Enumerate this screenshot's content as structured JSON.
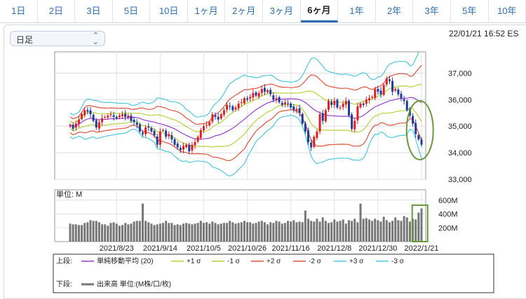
{
  "tabs": [
    {
      "label": "1日",
      "active": false
    },
    {
      "label": "2日",
      "active": false
    },
    {
      "label": "3日",
      "active": false
    },
    {
      "label": "5日",
      "active": false
    },
    {
      "label": "10日",
      "active": false
    },
    {
      "label": "1ヶ月",
      "active": false
    },
    {
      "label": "2ヶ月",
      "active": false
    },
    {
      "label": "3ヶ月",
      "active": false
    },
    {
      "label": "6ヶ月",
      "active": true
    },
    {
      "label": "1年",
      "active": false
    },
    {
      "label": "2年",
      "active": false
    },
    {
      "label": "3年",
      "active": false
    },
    {
      "label": "5年",
      "active": false
    },
    {
      "label": "10年",
      "active": false
    }
  ],
  "period_select": {
    "value": "日足"
  },
  "timestamp": "22/01/21 16:52 ES",
  "colors": {
    "up": "#e02020",
    "down": "#1f3c9c",
    "sma": "#9b3fd0",
    "sigma1": "#b8d23c",
    "sigma2": "#e0523a",
    "sigma3": "#4cc8e0",
    "volume": "#777777",
    "annotation": "#6a9a3c"
  },
  "chart_data": {
    "type": "candlestick",
    "price_axis": {
      "ticks": [
        "37,000",
        "36,000",
        "35,000",
        "34,000",
        "33,000"
      ],
      "ylim": [
        33000,
        37800
      ]
    },
    "volume_axis": {
      "unit_label": "単位: M",
      "ticks": [
        "600M",
        "400M",
        "200M"
      ],
      "ylim": [
        0,
        750
      ]
    },
    "x_ticks": [
      "2021/8/23",
      "2021/9/14",
      "2021/10/5",
      "2021/10/26",
      "2021/11/16",
      "2021/12/8",
      "2021/12/30",
      "2022/1/21"
    ],
    "close": [
      35050,
      34900,
      35100,
      35250,
      35450,
      35600,
      35550,
      35450,
      35200,
      34950,
      35150,
      35300,
      35350,
      35400,
      35450,
      35350,
      35300,
      35400,
      35450,
      35350,
      35400,
      35200,
      35150,
      35050,
      34800,
      34700,
      34950,
      34950,
      34800,
      34650,
      34300,
      34800,
      34850,
      34600,
      34700,
      34500,
      34300,
      34200,
      34100,
      34250,
      34300,
      34050,
      34300,
      34400,
      34600,
      34850,
      35000,
      35050,
      35150,
      35450,
      35350,
      35250,
      35450,
      35600,
      35800,
      35750,
      35600,
      35700,
      35850,
      35900,
      36050,
      36000,
      36100,
      36250,
      36150,
      36250,
      36400,
      36300,
      36350,
      36200,
      36000,
      36050,
      35900,
      35800,
      35900,
      35850,
      35700,
      35600,
      35650,
      35500,
      35100,
      34800,
      34400,
      34200,
      34600,
      34800,
      35450,
      35200,
      35600,
      35950,
      35800,
      35950,
      35700,
      35700,
      35850,
      35950,
      35400,
      34900,
      35200,
      35750,
      35850,
      35800,
      36000,
      36050,
      36100,
      36400,
      36300,
      36200,
      36550,
      36800,
      36700,
      36300,
      36400,
      36200,
      36050,
      35950,
      35600,
      35400,
      35100,
      34700,
      34500,
      34300
    ],
    "volume": [
      260,
      250,
      250,
      240,
      240,
      270,
      280,
      310,
      300,
      300,
      280,
      250,
      250,
      230,
      270,
      280,
      260,
      230,
      240,
      270,
      250,
      260,
      290,
      300,
      300,
      550,
      300,
      280,
      260,
      240,
      250,
      260,
      270,
      300,
      270,
      270,
      240,
      250,
      240,
      260,
      270,
      260,
      250,
      260,
      270,
      300,
      270,
      280,
      260,
      290,
      270,
      250,
      260,
      270,
      270,
      300,
      280,
      260,
      270,
      280,
      300,
      280,
      280,
      260,
      270,
      290,
      300,
      280,
      250,
      280,
      270,
      300,
      290,
      260,
      270,
      300,
      290,
      310,
      280,
      290,
      280,
      450,
      330,
      300,
      290,
      330,
      290,
      350,
      300,
      270,
      280,
      320,
      290,
      300,
      320,
      260,
      310,
      300,
      330,
      280,
      550,
      330,
      340,
      320,
      300,
      330,
      310,
      290,
      360,
      310,
      280,
      300,
      350,
      310,
      300,
      370,
      350,
      290,
      330,
      320,
      420,
      480
    ],
    "legend": {
      "upper_label": "上段:",
      "items": [
        {
          "label": "単純移動平均 (20)",
          "color": "#9b3fd0"
        },
        {
          "label": "+1 σ",
          "color": "#b8d23c"
        },
        {
          "label": "-1 σ",
          "color": "#b8d23c"
        },
        {
          "label": "+2 σ",
          "color": "#e0523a"
        },
        {
          "label": "-2 σ",
          "color": "#e0523a"
        },
        {
          "label": "+3 σ",
          "color": "#4cc8e0"
        },
        {
          "label": "-3 σ",
          "color": "#4cc8e0"
        }
      ],
      "lower_label": "下段:",
      "lower_item": {
        "label": "出来高 単位:(M株/口/枚)",
        "color": "#777777"
      }
    }
  }
}
